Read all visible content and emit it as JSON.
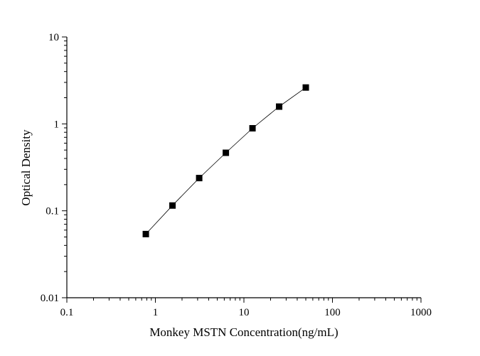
{
  "chart_data": {
    "type": "line",
    "title": "",
    "xlabel": "Monkey MSTN Concentration(ng/mL)",
    "ylabel": "Optical Density",
    "x_scale": "log",
    "y_scale": "log",
    "xlim": [
      0.1,
      1000
    ],
    "ylim": [
      0.01,
      10
    ],
    "x_ticks": [
      0.1,
      1,
      10,
      100,
      1000
    ],
    "x_tick_labels": [
      "0.1",
      "1",
      "10",
      "100",
      "1000"
    ],
    "y_ticks": [
      0.01,
      0.1,
      1,
      10
    ],
    "y_tick_labels": [
      "0.01",
      "0.1",
      "1",
      "10"
    ],
    "grid": false,
    "marker": "square",
    "series": [
      {
        "x": [
          0.78,
          1.56,
          3.125,
          6.25,
          12.5,
          25,
          50
        ],
        "y": [
          0.054,
          0.115,
          0.238,
          0.465,
          0.89,
          1.58,
          2.62
        ]
      }
    ],
    "colors": {
      "marker": "#000000",
      "line": "#000000"
    }
  }
}
